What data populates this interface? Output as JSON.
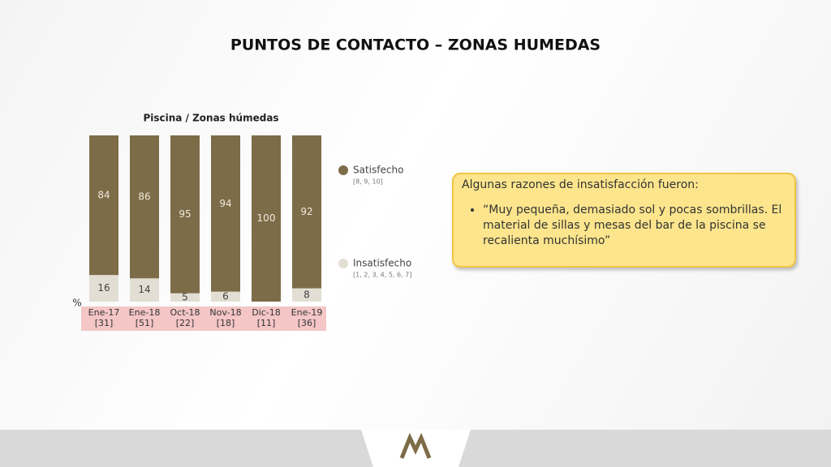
{
  "title": "PUNTOS DE CONTACTO – ZONAS HUMEDAS",
  "chart_data": {
    "type": "stacked_bar",
    "title": "Piscina / Zonas húmedas",
    "y_label": "%",
    "categories": [
      "Ene-17",
      "Ene-18",
      "Oct-18",
      "Nov-18",
      "Dic-18",
      "Ene-19"
    ],
    "sample_sizes": [
      "[31]",
      "[51]",
      "[22]",
      "[18]",
      "[11]",
      "[36]"
    ],
    "series": [
      {
        "name": "Insatisfecho",
        "note": "[1, 2, 3, 4, 5, 6, 7]",
        "color": "#e3ded4",
        "values": [
          16,
          14,
          5,
          6,
          0,
          8
        ]
      },
      {
        "name": "Satisfecho",
        "note": "[8, 9, 10]",
        "color": "#7d6c48",
        "values": [
          84,
          86,
          95,
          94,
          100,
          92
        ]
      }
    ],
    "ylim": [
      0,
      100
    ]
  },
  "note_box": {
    "heading": "Algunas razones de insatisfacción fueron:",
    "items": [
      "“Muy pequeña, demasiado sol y pocas sombrillas. El material de sillas y mesas del bar de la piscina se recalienta muchísimo”"
    ]
  }
}
